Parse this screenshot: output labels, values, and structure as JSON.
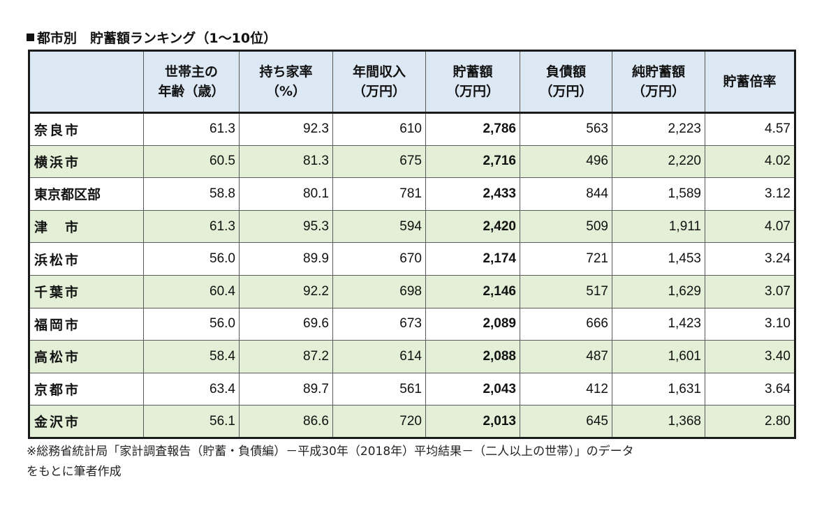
{
  "title": "都市別　貯蓄額ランキング（1～10位）",
  "table": {
    "headers": [
      {
        "line1": "",
        "line2": ""
      },
      {
        "line1": "世帯主の",
        "line2": "年齢（歳）"
      },
      {
        "line1": "持ち家率",
        "line2": "（%）"
      },
      {
        "line1": "年間収入",
        "line2": "（万円）"
      },
      {
        "line1": "貯蓄額",
        "line2": "（万円）"
      },
      {
        "line1": "負債額",
        "line2": "（万円）"
      },
      {
        "line1": "純貯蓄額",
        "line2": "（万円）"
      },
      {
        "line1": "貯蓄倍率",
        "line2": ""
      }
    ],
    "rows": [
      {
        "city": "奈良市",
        "age": "61.3",
        "home": "92.3",
        "income": "610",
        "savings": "2,786",
        "debt": "563",
        "net": "2,223",
        "ratio": "4.57"
      },
      {
        "city": "横浜市",
        "age": "60.5",
        "home": "81.3",
        "income": "675",
        "savings": "2,716",
        "debt": "496",
        "net": "2,220",
        "ratio": "4.02"
      },
      {
        "city": "東京都区部",
        "age": "58.8",
        "home": "80.1",
        "income": "781",
        "savings": "2,433",
        "debt": "844",
        "net": "1,589",
        "ratio": "3.12"
      },
      {
        "city": "津　市",
        "age": "61.3",
        "home": "95.3",
        "income": "594",
        "savings": "2,420",
        "debt": "509",
        "net": "1,911",
        "ratio": "4.07"
      },
      {
        "city": "浜松市",
        "age": "56.0",
        "home": "89.9",
        "income": "670",
        "savings": "2,174",
        "debt": "721",
        "net": "1,453",
        "ratio": "3.24"
      },
      {
        "city": "千葉市",
        "age": "60.4",
        "home": "92.2",
        "income": "698",
        "savings": "2,146",
        "debt": "517",
        "net": "1,629",
        "ratio": "3.07"
      },
      {
        "city": "福岡市",
        "age": "56.0",
        "home": "69.6",
        "income": "673",
        "savings": "2,089",
        "debt": "666",
        "net": "1,423",
        "ratio": "3.10"
      },
      {
        "city": "高松市",
        "age": "58.4",
        "home": "87.2",
        "income": "614",
        "savings": "2,088",
        "debt": "487",
        "net": "1,601",
        "ratio": "3.40"
      },
      {
        "city": "京都市",
        "age": "63.4",
        "home": "89.7",
        "income": "561",
        "savings": "2,043",
        "debt": "412",
        "net": "1,631",
        "ratio": "3.64"
      },
      {
        "city": "金沢市",
        "age": "56.1",
        "home": "86.6",
        "income": "720",
        "savings": "2,013",
        "debt": "645",
        "net": "1,368",
        "ratio": "2.80"
      }
    ]
  },
  "footnote": {
    "line1": "※総務省統計局「家計調査報告（貯蓄・負債編）－平成30年（2018年）平均結果－（二人以上の世帯）」のデータ",
    "line2": "をもとに筆者作成"
  },
  "colors": {
    "header_bg": "#dde8f5",
    "alt_row_bg": "#e3efd6",
    "border": "#1a1a1a"
  }
}
